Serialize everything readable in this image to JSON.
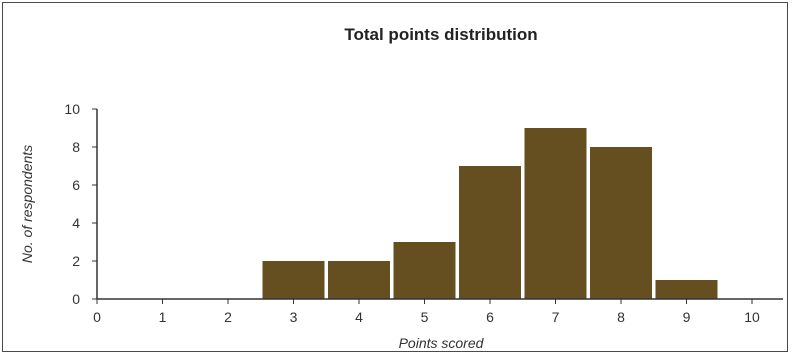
{
  "chart_data": {
    "type": "bar",
    "title": "Total points distribution",
    "xlabel": "Points scored",
    "ylabel": "No. of respondents",
    "categories": [
      "0",
      "1",
      "2",
      "3",
      "4",
      "5",
      "6",
      "7",
      "8",
      "9",
      "10"
    ],
    "values": [
      0,
      0,
      0,
      2,
      2,
      3,
      7,
      9,
      8,
      1,
      0
    ],
    "ylim": [
      0,
      10
    ],
    "yticks": [
      "0",
      "2",
      "4",
      "6",
      "8",
      "10"
    ],
    "grid": false,
    "legend": "none",
    "colors": {
      "bar": "#654f20",
      "axis": "#333333"
    }
  }
}
